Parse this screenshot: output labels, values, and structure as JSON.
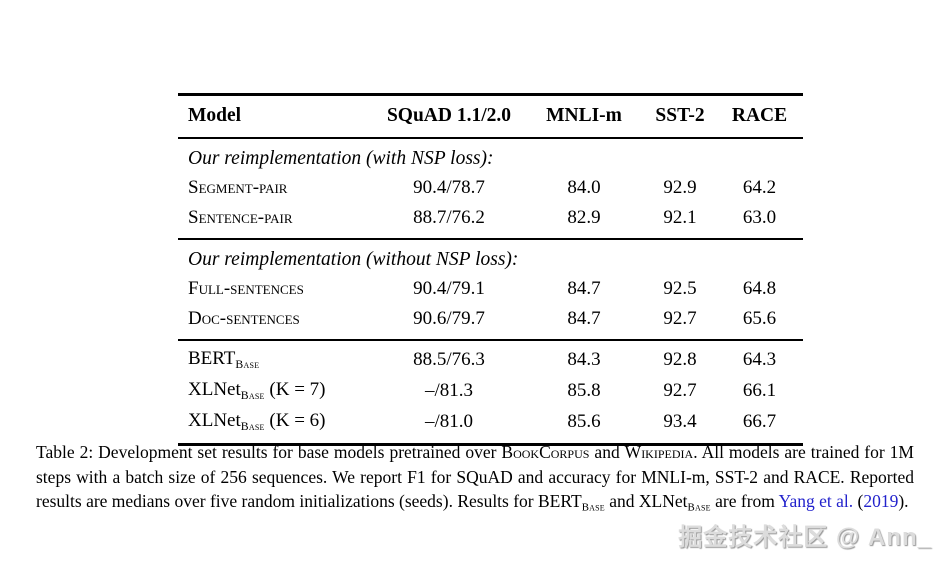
{
  "colors": {
    "link": "#2222cc",
    "text": "#000000",
    "background": "#ffffff",
    "watermark": "#dcdcdc"
  },
  "table": {
    "columns": [
      "Model",
      "SQuAD 1.1/2.0",
      "MNLI-m",
      "SST-2",
      "RACE"
    ],
    "sections": [
      {
        "heading": "Our reimplementation (with NSP loss):",
        "rows": [
          {
            "label": [
              {
                "text": "Segment-pair",
                "style": "sc"
              }
            ],
            "values": [
              "90.4/78.7",
              "84.0",
              "92.9",
              "64.2"
            ]
          },
          {
            "label": [
              {
                "text": "Sentence-pair",
                "style": "sc"
              }
            ],
            "values": [
              "88.7/76.2",
              "82.9",
              "92.1",
              "63.0"
            ]
          }
        ]
      },
      {
        "heading": "Our reimplementation (without NSP loss):",
        "rows": [
          {
            "label": [
              {
                "text": "Full-sentences",
                "style": "sc"
              }
            ],
            "values": [
              "90.4/79.1",
              "84.7",
              "92.5",
              "64.8"
            ]
          },
          {
            "label": [
              {
                "text": "Doc-sentences",
                "style": "sc"
              }
            ],
            "values": [
              "90.6/79.7",
              "84.7",
              "92.7",
              "65.6"
            ]
          }
        ]
      },
      {
        "heading": "",
        "rows": [
          {
            "label": [
              {
                "text": "BERT"
              },
              {
                "text": "Base",
                "style": "subsc"
              }
            ],
            "values": [
              "88.5/76.3",
              "84.3",
              "92.8",
              "64.3"
            ]
          },
          {
            "label": [
              {
                "text": "XLNet"
              },
              {
                "text": "Base",
                "style": "subsc"
              },
              {
                "text": " (K = 7)"
              }
            ],
            "values": [
              "–/81.3",
              "85.8",
              "92.7",
              "66.1"
            ]
          },
          {
            "label": [
              {
                "text": "XLNet"
              },
              {
                "text": "Base",
                "style": "subsc"
              },
              {
                "text": " (K = 6)"
              }
            ],
            "values": [
              "–/81.0",
              "85.6",
              "93.4",
              "66.7"
            ]
          }
        ]
      }
    ]
  },
  "caption": {
    "segments": [
      {
        "text": "Table 2: Development set results for base models pretrained over "
      },
      {
        "text": "BookCorpus",
        "style": "sc"
      },
      {
        "text": " and "
      },
      {
        "text": "Wikipedia",
        "style": "sc"
      },
      {
        "text": ". All models are trained for 1M steps with a batch size of 256 sequences. We report F1 for SQuAD and accuracy for MNLI-m, SST-2 and RACE. Reported results are medians over five random initializations (seeds). Results for BERT"
      },
      {
        "text": "Base",
        "style": "subsc"
      },
      {
        "text": " and XLNet"
      },
      {
        "text": "Base",
        "style": "subsc"
      },
      {
        "text": " are from "
      },
      {
        "text": "Yang et al.",
        "style": "link"
      },
      {
        "text": " ("
      },
      {
        "text": "2019",
        "style": "link"
      },
      {
        "text": ")."
      }
    ]
  },
  "watermark": {
    "text": "掘金技术社区 @ Ann_"
  }
}
